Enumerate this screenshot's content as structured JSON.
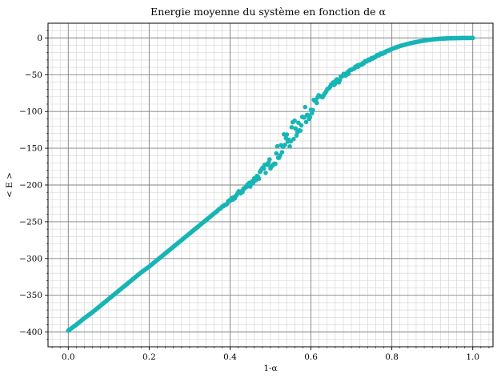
{
  "chart_data": {
    "type": "scatter",
    "title": "Energie moyenne du système en fonction de α",
    "xlabel": "1-α",
    "ylabel": "< E >",
    "xlim": [
      -0.05,
      1.05
    ],
    "ylim": [
      -420,
      20
    ],
    "xticks": [
      0.0,
      0.2,
      0.4,
      0.6,
      0.8,
      1.0
    ],
    "xtick_labels": [
      "0.0",
      "0.2",
      "0.4",
      "0.6",
      "0.8",
      "1.0"
    ],
    "yticks": [
      0,
      -50,
      -100,
      -150,
      -200,
      -250,
      -300,
      -350,
      -400
    ],
    "ytick_labels": [
      "0",
      "−50",
      "−100",
      "−150",
      "−200",
      "−250",
      "−300",
      "−350",
      "−400"
    ],
    "grid": "major and minor",
    "legend": "none",
    "colors": {
      "points": "#17b5b5",
      "major_grid": "#808080",
      "minor_grid": "#d3d3d3"
    },
    "series": [
      {
        "x": [
          0.0,
          0.02,
          0.04,
          0.06,
          0.08,
          0.1,
          0.12,
          0.14,
          0.16,
          0.18,
          0.2,
          0.22,
          0.24,
          0.26,
          0.28,
          0.3,
          0.32,
          0.34,
          0.36,
          0.38,
          0.4,
          0.42,
          0.44,
          0.46,
          0.48,
          0.5,
          0.52,
          0.54,
          0.56,
          0.58,
          0.6,
          0.62,
          0.64,
          0.66,
          0.68,
          0.7,
          0.72,
          0.74,
          0.76,
          0.78,
          0.8,
          0.82,
          0.84,
          0.86,
          0.88,
          0.9,
          0.92,
          0.94,
          0.96,
          0.98,
          1.0
        ],
        "y": [
          -398,
          -390,
          -381,
          -373,
          -364,
          -355,
          -346,
          -337,
          -328,
          -319,
          -311,
          -302,
          -293,
          -284,
          -275,
          -266,
          -257,
          -248,
          -239,
          -230,
          -222,
          -212,
          -203,
          -193,
          -182,
          -170,
          -155,
          -140,
          -125,
          -110,
          -96,
          -84,
          -72,
          -62,
          -52,
          -44,
          -37,
          -31,
          -25,
          -20,
          -15,
          -11,
          -8,
          -5.5,
          -3.5,
          -2,
          -1,
          -0.5,
          -0.2,
          -0.05,
          0
        ],
        "noise": [
          0,
          0,
          0,
          0,
          0,
          0,
          0,
          0,
          0,
          0,
          0,
          0,
          0,
          0,
          0,
          0,
          0,
          0,
          0,
          1,
          2,
          3,
          4,
          5,
          6,
          8,
          12,
          15,
          15,
          13,
          10,
          7,
          5,
          4,
          3,
          2,
          2,
          1,
          1,
          1,
          0,
          0,
          0,
          0,
          0,
          0,
          0,
          0,
          0,
          0,
          0
        ]
      }
    ]
  }
}
